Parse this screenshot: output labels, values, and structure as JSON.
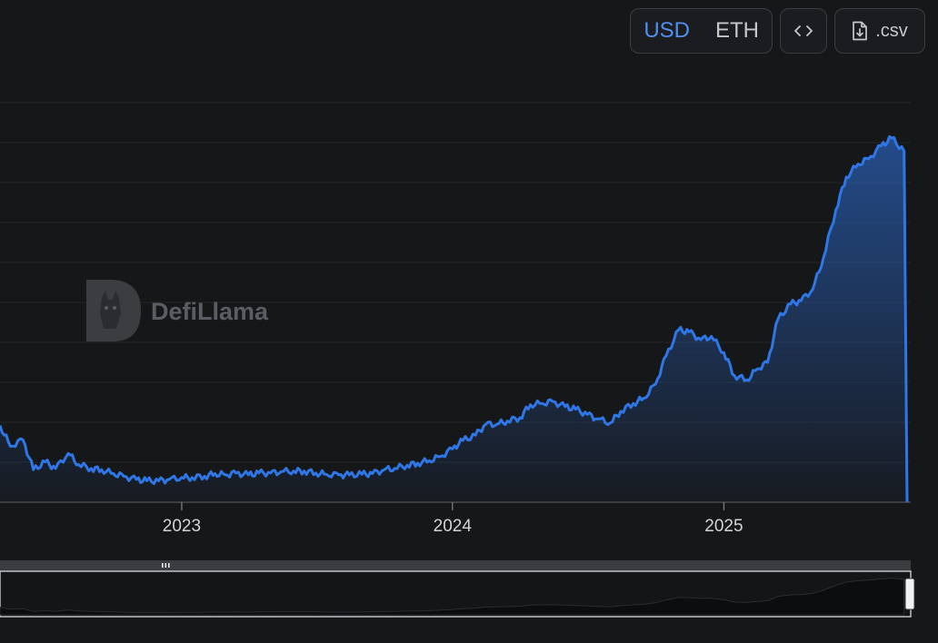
{
  "toolbar": {
    "currency_options": [
      "USD",
      "ETH"
    ],
    "active_currency": "USD",
    "embed_icon": "code-brackets-icon",
    "csv_icon": "file-download-icon",
    "csv_label": ".csv"
  },
  "watermark": {
    "text": "DefiLlama",
    "icon": "llama-logo-icon"
  },
  "colors": {
    "line": "#2f76e6",
    "background": "#161719",
    "grid": "#232529"
  },
  "chart_data": {
    "type": "area",
    "title": "",
    "xlabel": "",
    "ylabel": "",
    "x_ticks": [
      "2023",
      "2024",
      "2025"
    ],
    "x_range": [
      "2022-05-01",
      "2025-09-05"
    ],
    "grid": true,
    "legend": "none",
    "series": [
      {
        "x": [
          "2022-05-01",
          "2022-05-15",
          "2022-06-01",
          "2022-06-15",
          "2022-07-01",
          "2022-07-15",
          "2022-08-01",
          "2022-08-15",
          "2022-09-01",
          "2022-09-15",
          "2022-10-01",
          "2022-10-15",
          "2022-11-01",
          "2022-11-15",
          "2022-12-01",
          "2022-12-15",
          "2023-01-01",
          "2023-01-15",
          "2023-02-01",
          "2023-02-15",
          "2023-03-01",
          "2023-03-15",
          "2023-04-01",
          "2023-04-15",
          "2023-05-01",
          "2023-05-15",
          "2023-06-01",
          "2023-06-15",
          "2023-07-01",
          "2023-07-15",
          "2023-08-01",
          "2023-08-15",
          "2023-09-01",
          "2023-09-15",
          "2023-10-01",
          "2023-10-15",
          "2023-11-01",
          "2023-11-15",
          "2023-12-01",
          "2023-12-15",
          "2024-01-01",
          "2024-01-15",
          "2024-02-01",
          "2024-02-15",
          "2024-03-01",
          "2024-03-15",
          "2024-04-01",
          "2024-04-15",
          "2024-05-01",
          "2024-05-15",
          "2024-06-01",
          "2024-06-15",
          "2024-07-01",
          "2024-07-15",
          "2024-08-01",
          "2024-08-15",
          "2024-09-01",
          "2024-09-15",
          "2024-10-01",
          "2024-10-15",
          "2024-11-01",
          "2024-11-15",
          "2024-12-01",
          "2024-12-15",
          "2025-01-01",
          "2025-01-15",
          "2025-02-01",
          "2025-02-15",
          "2025-03-01",
          "2025-03-15",
          "2025-04-01",
          "2025-04-15",
          "2025-05-01",
          "2025-05-15",
          "2025-06-01",
          "2025-06-15",
          "2025-07-01",
          "2025-07-15",
          "2025-08-01",
          "2025-08-15",
          "2025-09-01",
          "2025-09-05"
        ],
        "values": [
          118,
          86,
          96,
          50,
          62,
          52,
          75,
          58,
          52,
          50,
          44,
          40,
          35,
          33,
          33,
          35,
          38,
          38,
          40,
          44,
          42,
          45,
          42,
          45,
          45,
          47,
          48,
          48,
          45,
          43,
          42,
          42,
          43,
          44,
          50,
          52,
          57,
          60,
          64,
          70,
          82,
          95,
          103,
          120,
          120,
          125,
          130,
          150,
          152,
          155,
          147,
          143,
          135,
          128,
          122,
          140,
          152,
          160,
          182,
          225,
          265,
          262,
          250,
          255,
          230,
          195,
          188,
          205,
          215,
          282,
          305,
          310,
          328,
          375,
          450,
          500,
          520,
          528,
          548,
          560,
          540,
          0
        ]
      }
    ]
  }
}
